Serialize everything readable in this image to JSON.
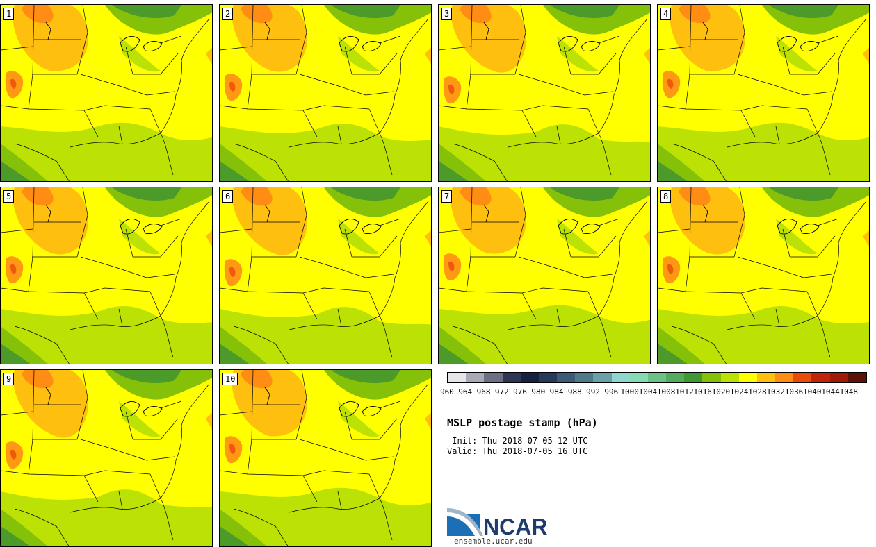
{
  "members": [
    "1",
    "2",
    "3",
    "4",
    "5",
    "6",
    "7",
    "8",
    "9",
    "10"
  ],
  "legend": {
    "title": "MSLP postage stamp (hPa)",
    "levels": [
      "960",
      "964",
      "968",
      "972",
      "976",
      "980",
      "984",
      "988",
      "992",
      "996",
      "1000",
      "1004",
      "1008",
      "1012",
      "1016",
      "1020",
      "1024",
      "1028",
      "1032",
      "1036",
      "1040",
      "1044",
      "1048"
    ],
    "colors": [
      "#e6e6ea",
      "#a8aab8",
      "#6d7085",
      "#2e3655",
      "#16203f",
      "#283a5c",
      "#3d5a79",
      "#4f7a8c",
      "#6ba0a6",
      "#8fd6cf",
      "#86dbb4",
      "#6bc486",
      "#54aa5f",
      "#3f9a36",
      "#86c10a",
      "#bce104",
      "#ffff00",
      "#ffbf0e",
      "#ff8d14",
      "#ea4a0c",
      "#c22409",
      "#a01a0a",
      "#5e1206"
    ]
  },
  "init_line": " Init: Thu 2018-07-05 12 UTC",
  "valid_line": "Valid: Thu 2018-07-05 16 UTC",
  "logo": {
    "text": "NCAR",
    "url": "ensemble.ucar.edu"
  },
  "map_colors": {
    "low_green": "#4c9a2a",
    "mid_green": "#86c10a",
    "light_green": "#bce104",
    "yellow": "#ffff00",
    "orange": "#ffbf0e",
    "dark_orange": "#ff8d14",
    "red": "#ea4a0c"
  }
}
